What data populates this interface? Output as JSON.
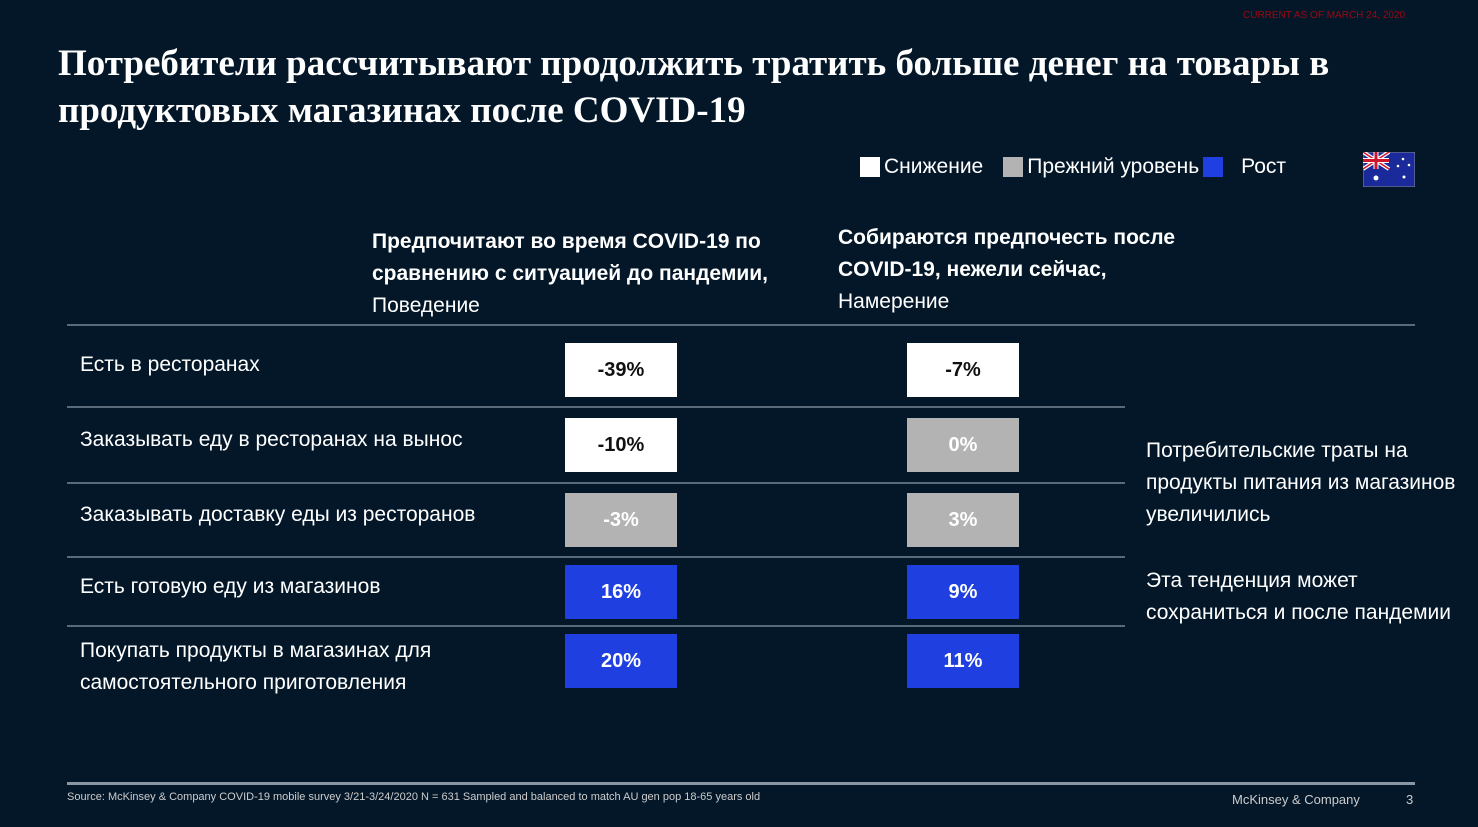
{
  "current_as_of": "CURRENT AS OF MARCH 24, 2020",
  "title": "Потребители рассчитывают продолжить тратить больше денег на товары в продуктовых магазинах после COVID-19",
  "legend": [
    {
      "label": "Снижение",
      "color": "#ffffff"
    },
    {
      "label": "Прежний уровень",
      "color": "#b3b3b3"
    },
    {
      "label": "Рост",
      "color": "#1f3fe0"
    }
  ],
  "columns": [
    {
      "head_bold": "Предпочитают во время COVID-19 по сравнению с ситуацией до пандемии,",
      "head_sub": "Поведение"
    },
    {
      "head_bold": "Собираются предпочесть после COVID-19, нежели сейчас,",
      "head_sub": "Намерение"
    }
  ],
  "rows": [
    {
      "label": "Есть в ресторанах",
      "values": [
        "-39%",
        "-7%"
      ],
      "status": [
        "decrease",
        "decrease"
      ]
    },
    {
      "label": "Заказывать еду в ресторанах на вынос",
      "values": [
        "-10%",
        "0%"
      ],
      "status": [
        "decrease",
        "same"
      ]
    },
    {
      "label": "Заказывать доставку еды из ресторанов",
      "values": [
        "-3%",
        "3%"
      ],
      "status": [
        "same",
        "same"
      ]
    },
    {
      "label": "Есть готовую еду из магазинов",
      "values": [
        "16%",
        "9%"
      ],
      "status": [
        "increase",
        "increase"
      ]
    },
    {
      "label": "Покупать продукты в магазинах для самостоятельного приготовления",
      "values": [
        "20%",
        "11%"
      ],
      "status": [
        "increase",
        "increase"
      ]
    }
  ],
  "side_notes": [
    "Потребительские траты на продукты питания из магазинов увеличились",
    "Эта тенденция может сохраниться и после пандемии"
  ],
  "footer": {
    "source": "Source: McKinsey & Company COVID-19 mobile survey 3/21-3/24/2020 N = 631 Sampled and balanced to match AU gen pop 18-65 years old",
    "brand": "McKinsey & Company",
    "page": "3"
  },
  "colors": {
    "decrease": "#ffffff",
    "same": "#b3b3b3",
    "increase": "#1f3fe0",
    "background": "#031729"
  }
}
